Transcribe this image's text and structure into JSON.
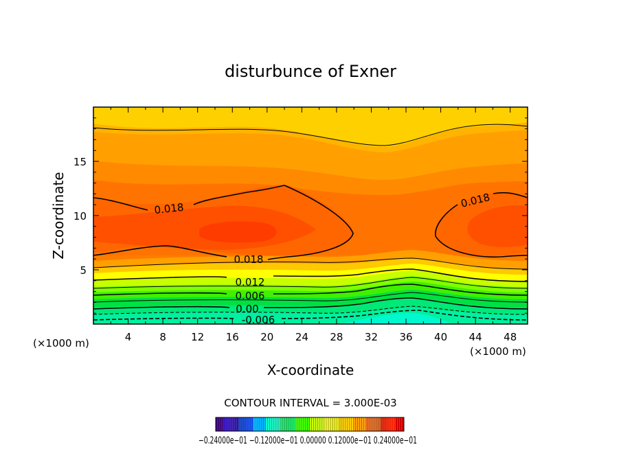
{
  "chart_data": {
    "type": "contour",
    "title": "disturbunce of Exner",
    "xlabel": "X-coordinate",
    "ylabel": "Z-coordinate",
    "x_unit_note": "(×1000 m)",
    "z_unit_note": "(×1000 m)",
    "xlim": [
      0,
      50
    ],
    "ylim": [
      0,
      20
    ],
    "x_ticks": [
      4,
      8,
      12,
      16,
      20,
      24,
      28,
      32,
      36,
      40,
      44,
      48
    ],
    "y_ticks": [
      5,
      10,
      15
    ],
    "contour_interval_text": "CONTOUR INTERVAL = 3.000E-03",
    "contour_labels": [
      {
        "text": "0.018",
        "x": 8.5,
        "z": 10.7
      },
      {
        "text": "0.018",
        "x": 43.8,
        "z": 11.4
      },
      {
        "text": "0.018",
        "x": 17.6,
        "z": 6.0
      },
      {
        "text": "0.012",
        "x": 17.6,
        "z": 3.9
      },
      {
        "text": "0.006",
        "x": 17.6,
        "z": 2.6
      },
      {
        "text": "0.00",
        "x": 17.6,
        "z": 1.5
      },
      {
        "text": "-0.006",
        "x": 17.6,
        "z": 0.4
      }
    ],
    "colorbar_labels": "-0.24000e-01 -0.12000e-01 0.00000 0.12000e-01 0.24000e-01",
    "colorbar_label_text": "−0.24000e−01 −0.12000e−01 0.00000 0.12000e−01 0.24000e−01",
    "colormap": [
      "#3a0078",
      "#2a00c8",
      "#0044ff",
      "#00b4ff",
      "#00ffc8",
      "#00ff60",
      "#40ff00",
      "#c8ff00",
      "#ffff00",
      "#ffd000",
      "#ffa000",
      "#ff6000",
      "#ff2000",
      "#d00000"
    ]
  }
}
